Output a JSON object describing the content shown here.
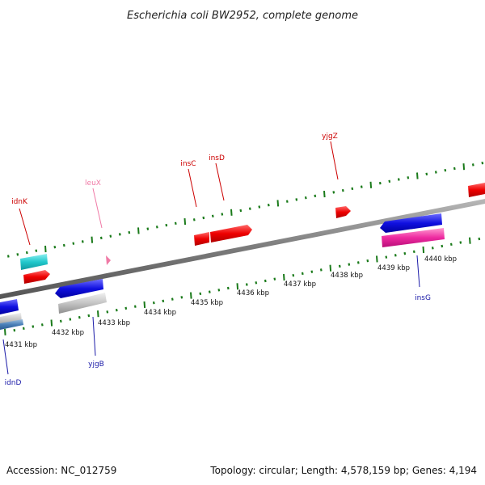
{
  "title": "Escherichia coli BW2952, complete genome",
  "footer": {
    "accession": "Accession: NC_012759",
    "stats": "Topology: circular; Length: 4,578,159 bp; Genes: 4,194"
  },
  "colors": {
    "backbone": "#8a8a8a",
    "tick": "#1a7a1a",
    "label_top": "#cc0000",
    "label_bottom": "#1a1aa8",
    "label_pink": "#f07aa6"
  },
  "scale": {
    "ticks": [
      "4431 kbp",
      "4432 kbp",
      "4433 kbp",
      "4434 kbp",
      "4435 kbp",
      "4436 kbp",
      "4437 kbp",
      "4438 kbp",
      "4439 kbp",
      "4440 kbp"
    ]
  },
  "gene_labels": [
    {
      "name": "idnK",
      "color": "#cc0000"
    },
    {
      "name": "leuX",
      "color": "#f07aa6"
    },
    {
      "name": "insC",
      "color": "#cc0000"
    },
    {
      "name": "insD",
      "color": "#cc0000"
    },
    {
      "name": "yjgZ",
      "color": "#cc0000"
    },
    {
      "name": "insG",
      "color": "#1a1aa8"
    },
    {
      "name": "yjgB",
      "color": "#1a1aa8"
    },
    {
      "name": "idnD",
      "color": "#1a1aa8"
    }
  ]
}
